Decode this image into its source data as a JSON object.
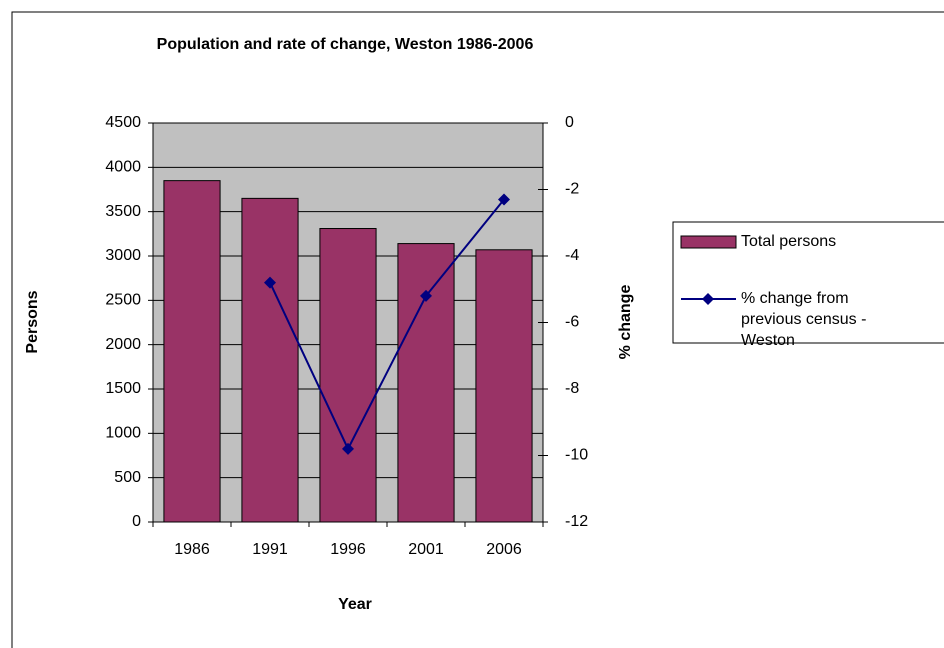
{
  "chart_data": {
    "type": "bar",
    "title": "Population and rate of change, Weston 1986-2006",
    "x_label": "Year",
    "y_label": "Persons",
    "y2_label": "% change",
    "categories": [
      "1986",
      "1991",
      "1996",
      "2001",
      "2006"
    ],
    "series": [
      {
        "name": "Total persons",
        "type": "bar",
        "color": "#993366",
        "values": [
          3850,
          3650,
          3310,
          3140,
          3070
        ]
      },
      {
        "name": "% change from previous census - Weston",
        "type": "line",
        "axis": "y2",
        "color": "#000080",
        "values": [
          null,
          -4.8,
          -9.8,
          -5.2,
          -2.3
        ]
      }
    ],
    "ylim": [
      0,
      4500
    ],
    "yticks": [
      0,
      500,
      1000,
      1500,
      2000,
      2500,
      3000,
      3500,
      4000,
      4500
    ],
    "y2lim": [
      -12,
      0
    ],
    "y2ticks": [
      -12,
      -10,
      -8,
      -6,
      -4,
      -2,
      0
    ],
    "grid": true,
    "legend": "right",
    "plot_background": "#c0c0c0"
  }
}
